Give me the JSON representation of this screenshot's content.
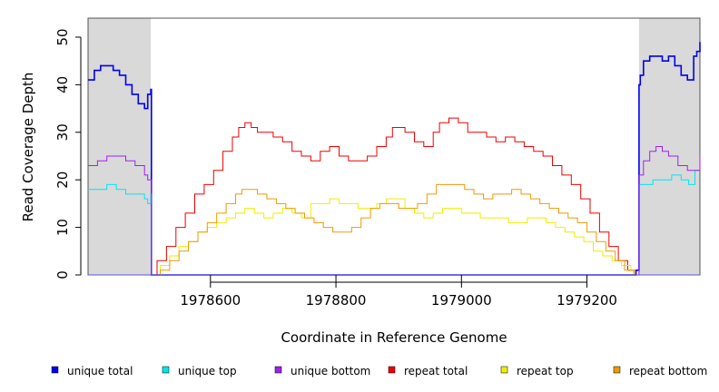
{
  "chart_data": {
    "type": "line",
    "title": "",
    "xlabel": "Coordinate in Reference Genome",
    "ylabel": "Read Coverage Depth",
    "xlim": [
      1978405,
      1979380
    ],
    "ylim": [
      0,
      54
    ],
    "xticks": [
      1978600,
      1978800,
      1979000,
      1979200
    ],
    "xtick_labels": [
      "1978600",
      "1978800",
      "1979000",
      "1979200"
    ],
    "yticks": [
      0,
      10,
      20,
      30,
      40,
      50
    ],
    "ytick_labels": [
      "0",
      "10",
      "20",
      "30",
      "40",
      "50"
    ],
    "shaded_regions": [
      [
        1978405,
        1978505
      ],
      [
        1979283,
        1979380
      ]
    ],
    "shade_color": "#d9d9d9",
    "grid": false,
    "legend_position": "bottom",
    "series": [
      {
        "name": "unique total",
        "color": "#0000ee",
        "width": 1.6,
        "x": [
          1978405,
          1978415,
          1978425,
          1978435,
          1978445,
          1978455,
          1978465,
          1978475,
          1978485,
          1978495,
          1978500,
          1978505,
          1978506,
          1979278,
          1979283,
          1979285,
          1979290,
          1979300,
          1979310,
          1979320,
          1979330,
          1979340,
          1979350,
          1979360,
          1979370,
          1979375,
          1979380
        ],
        "y": [
          41,
          43,
          44,
          44,
          43,
          42,
          40,
          38,
          36,
          35,
          38,
          39,
          0,
          1,
          40,
          42,
          45,
          46,
          46,
          45,
          46,
          44,
          42,
          41,
          46,
          47,
          49
        ]
      },
      {
        "name": "unique top",
        "color": "#00e5ee",
        "width": 1,
        "x": [
          1978405,
          1978420,
          1978435,
          1978450,
          1978465,
          1978480,
          1978495,
          1978500,
          1978505,
          1978506,
          1979278,
          1979283,
          1979295,
          1979305,
          1979320,
          1979335,
          1979350,
          1979362,
          1979372,
          1979380
        ],
        "y": [
          18,
          18,
          19,
          18,
          17,
          17,
          16,
          15,
          17,
          0,
          0,
          19,
          19,
          20,
          20,
          21,
          20,
          19,
          22,
          23
        ]
      },
      {
        "name": "unique bottom",
        "color": "#a020f0",
        "width": 1,
        "x": [
          1978405,
          1978420,
          1978435,
          1978450,
          1978465,
          1978480,
          1978495,
          1978500,
          1978505,
          1978506,
          1979278,
          1979283,
          1979290,
          1979300,
          1979310,
          1979320,
          1979330,
          1979345,
          1979360,
          1979375,
          1979380
        ],
        "y": [
          23,
          24,
          25,
          25,
          24,
          23,
          21,
          20,
          20,
          0,
          0,
          21,
          24,
          26,
          27,
          26,
          25,
          23,
          22,
          22,
          25
        ]
      },
      {
        "name": "repeat total",
        "color": "#ee0000",
        "width": 1,
        "x": [
          1978505,
          1978515,
          1978530,
          1978545,
          1978560,
          1978575,
          1978590,
          1978605,
          1978620,
          1978635,
          1978645,
          1978655,
          1978665,
          1978675,
          1978690,
          1978700,
          1978715,
          1978730,
          1978745,
          1978760,
          1978775,
          1978790,
          1978805,
          1978820,
          1978835,
          1978850,
          1978865,
          1978880,
          1978890,
          1978900,
          1978910,
          1978925,
          1978940,
          1978955,
          1978965,
          1978980,
          1978995,
          1979010,
          1979025,
          1979040,
          1979055,
          1979070,
          1979085,
          1979100,
          1979115,
          1979130,
          1979145,
          1979160,
          1979175,
          1979190,
          1979205,
          1979220,
          1979235,
          1979250,
          1979265,
          1979275
        ],
        "y": [
          0,
          3,
          6,
          10,
          13,
          17,
          19,
          22,
          26,
          29,
          31,
          32,
          31,
          30,
          30,
          29,
          28,
          26,
          25,
          24,
          26,
          27,
          25,
          24,
          24,
          25,
          27,
          29,
          31,
          31,
          30,
          28,
          27,
          30,
          32,
          33,
          32,
          30,
          30,
          29,
          28,
          29,
          28,
          27,
          26,
          25,
          23,
          21,
          19,
          16,
          13,
          9,
          6,
          3,
          1,
          0
        ]
      },
      {
        "name": "repeat top",
        "color": "#eeee00",
        "width": 1,
        "x": [
          1978505,
          1978520,
          1978535,
          1978550,
          1978565,
          1978580,
          1978595,
          1978610,
          1978625,
          1978640,
          1978655,
          1978670,
          1978685,
          1978700,
          1978715,
          1978730,
          1978745,
          1978760,
          1978775,
          1978790,
          1978805,
          1978820,
          1978835,
          1978850,
          1978865,
          1978880,
          1978895,
          1978910,
          1978925,
          1978940,
          1978955,
          1978970,
          1978985,
          1979000,
          1979015,
          1979030,
          1979045,
          1979060,
          1979075,
          1979090,
          1979105,
          1979120,
          1979135,
          1979150,
          1979165,
          1979180,
          1979195,
          1979210,
          1979225,
          1979240,
          1979255,
          1979270,
          1979275
        ],
        "y": [
          0,
          2,
          4,
          6,
          7,
          9,
          10,
          11,
          12,
          13,
          14,
          13,
          12,
          13,
          14,
          13,
          12,
          15,
          15,
          16,
          15,
          15,
          14,
          14,
          15,
          16,
          16,
          14,
          13,
          12,
          13,
          14,
          14,
          13,
          13,
          12,
          12,
          12,
          11,
          11,
          12,
          12,
          11,
          10,
          9,
          8,
          7,
          5,
          4,
          3,
          2,
          1,
          0
        ]
      },
      {
        "name": "repeat bottom",
        "color": "#ee9a00",
        "width": 1,
        "x": [
          1978505,
          1978520,
          1978535,
          1978550,
          1978565,
          1978580,
          1978595,
          1978610,
          1978625,
          1978640,
          1978650,
          1978660,
          1978675,
          1978690,
          1978705,
          1978720,
          1978735,
          1978750,
          1978765,
          1978780,
          1978795,
          1978810,
          1978825,
          1978840,
          1978855,
          1978870,
          1978885,
          1978900,
          1978915,
          1978930,
          1978945,
          1978960,
          1978975,
          1978990,
          1979005,
          1979020,
          1979035,
          1979050,
          1979065,
          1979080,
          1979095,
          1979110,
          1979125,
          1979140,
          1979155,
          1979170,
          1979185,
          1979200,
          1979215,
          1979230,
          1979245,
          1979260,
          1979275
        ],
        "y": [
          0,
          1,
          3,
          5,
          7,
          9,
          11,
          13,
          15,
          17,
          18,
          18,
          17,
          16,
          15,
          14,
          13,
          12,
          11,
          10,
          9,
          9,
          10,
          12,
          14,
          15,
          15,
          14,
          14,
          15,
          17,
          19,
          19,
          19,
          18,
          17,
          16,
          17,
          17,
          18,
          17,
          16,
          15,
          14,
          13,
          12,
          11,
          9,
          7,
          5,
          3,
          1,
          0
        ]
      }
    ]
  },
  "legend": {
    "items": [
      {
        "label": "unique total",
        "color": "#0000ee"
      },
      {
        "label": "unique top",
        "color": "#00e5ee"
      },
      {
        "label": "unique bottom",
        "color": "#a020f0"
      },
      {
        "label": "repeat total",
        "color": "#ee0000"
      },
      {
        "label": "repeat top",
        "color": "#eeee00"
      },
      {
        "label": "repeat bottom",
        "color": "#ee9a00"
      }
    ]
  }
}
